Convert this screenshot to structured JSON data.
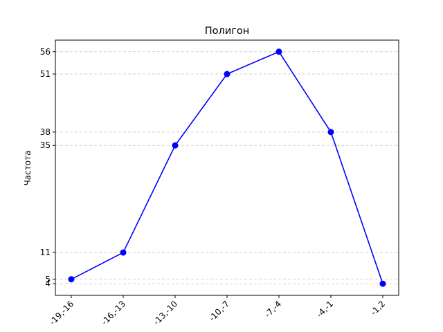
{
  "chart_data": {
    "type": "line",
    "title": "Полигон",
    "xlabel": "",
    "ylabel": "Частота",
    "categories": [
      "-19,-16",
      "-16,-13",
      "-13,-10",
      "-10,-7",
      "-7,-4",
      "-4,-1",
      "-1,2"
    ],
    "values": [
      5,
      11,
      35,
      51,
      56,
      38,
      4
    ],
    "yticks": [
      4,
      5,
      11,
      35,
      38,
      51,
      56
    ],
    "ylim": [
      1.4,
      58.6
    ],
    "grid": "y-dashed",
    "legend": "none",
    "series_color": "#0000ff",
    "marker": "circle"
  }
}
